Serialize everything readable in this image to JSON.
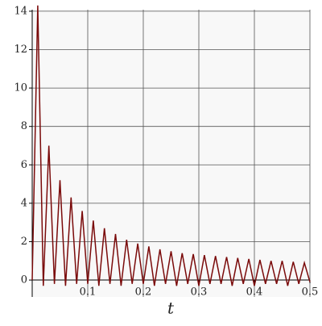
{
  "chart_data": {
    "type": "line",
    "xlabel": "t",
    "x": [
      0,
      0.01,
      0.02,
      0.03,
      0.04,
      0.05,
      0.06,
      0.07,
      0.08,
      0.09,
      0.1,
      0.11,
      0.12,
      0.13,
      0.14,
      0.15,
      0.16,
      0.17,
      0.18,
      0.19,
      0.2,
      0.21,
      0.22,
      0.23,
      0.24,
      0.25,
      0.26,
      0.27,
      0.28,
      0.29,
      0.3,
      0.31,
      0.32,
      0.33,
      0.34,
      0.35,
      0.36,
      0.37,
      0.38,
      0.39,
      0.4,
      0.41,
      0.42,
      0.43,
      0.44,
      0.45,
      0.46,
      0.47,
      0.48,
      0.49,
      0.5
    ],
    "series": [
      {
        "color": "#7a0a0a",
        "values": [
          0,
          14.3,
          -0.3,
          7.0,
          -0.2,
          5.2,
          -0.3,
          4.3,
          -0.2,
          3.6,
          -0.2,
          3.1,
          -0.3,
          2.7,
          -0.2,
          2.4,
          -0.3,
          2.1,
          -0.2,
          1.9,
          -0.2,
          1.75,
          -0.3,
          1.6,
          -0.2,
          1.5,
          -0.3,
          1.4,
          -0.2,
          1.35,
          -0.3,
          1.3,
          -0.2,
          1.25,
          -0.2,
          1.2,
          -0.3,
          1.15,
          -0.2,
          1.1,
          -0.3,
          1.05,
          -0.2,
          1.0,
          -0.2,
          1.0,
          -0.3,
          0.95,
          -0.2,
          0.9,
          -0.1
        ]
      }
    ],
    "xlim": [
      0,
      0.5
    ],
    "ylim": [
      -0.88,
      14.08
    ],
    "xticks": [
      0.1,
      0.2,
      0.3,
      0.4,
      0.5
    ],
    "yticks": [
      0,
      2,
      4,
      6,
      8,
      10,
      12,
      14
    ],
    "grid": true
  }
}
